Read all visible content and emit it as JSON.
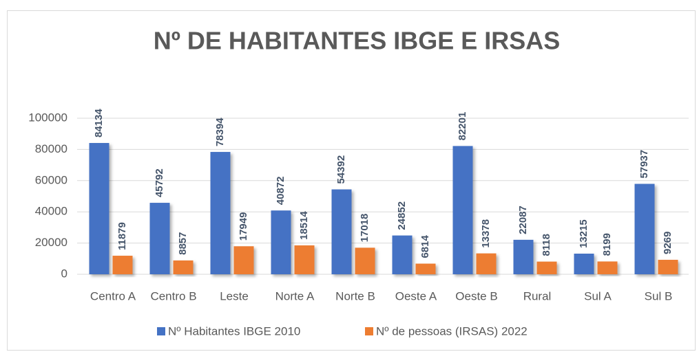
{
  "chart_data": {
    "type": "bar",
    "title": "Nº DE HABITANTES IBGE E IRSAS",
    "categories": [
      "Centro A",
      "Centro B",
      "Leste",
      "Norte A",
      "Norte B",
      "Oeste A",
      "Oeste B",
      "Rural",
      "Sul A",
      "Sul B"
    ],
    "series": [
      {
        "name": "Nº Habitantes IBGE 2010",
        "color": "#4472c4",
        "values": [
          84134,
          45792,
          78394,
          40872,
          54392,
          24852,
          82201,
          22087,
          13215,
          57937
        ]
      },
      {
        "name": "Nº de pessoas (IRSAS) 2022",
        "color": "#ed7d31",
        "values": [
          11879,
          8857,
          17949,
          18514,
          17018,
          6814,
          13378,
          8118,
          8199,
          9269
        ]
      }
    ],
    "ylim": [
      0,
      100000
    ],
    "yticks": [
      0,
      20000,
      40000,
      60000,
      80000,
      100000
    ],
    "grid": true,
    "legend": "bottom"
  }
}
